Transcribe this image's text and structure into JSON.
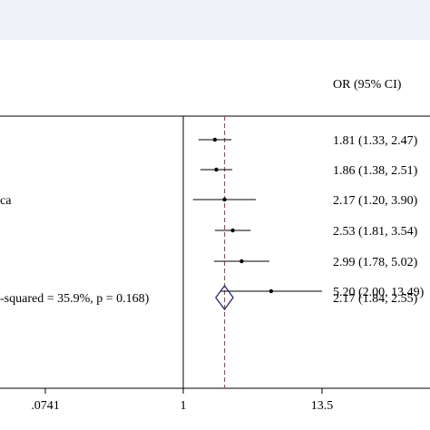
{
  "chart_data": {
    "type": "forest",
    "column_header": "OR (95% CI)",
    "x_scale": "log",
    "null_line": 1,
    "pooled_reference": 2.17,
    "x_ticks": [
      ".0741",
      "1",
      "13.5"
    ],
    "studies": [
      {
        "label": "",
        "or": 1.81,
        "lo": 1.33,
        "hi": 2.47,
        "text": "1.81 (1.33, 2.47)"
      },
      {
        "label": "",
        "or": 1.86,
        "lo": 1.38,
        "hi": 2.51,
        "text": "1.86 (1.38, 2.51)"
      },
      {
        "label": "ca",
        "or": 2.17,
        "lo": 1.2,
        "hi": 3.9,
        "text": "2.17 (1.20, 3.90)"
      },
      {
        "label": "",
        "or": 2.53,
        "lo": 1.81,
        "hi": 3.54,
        "text": "2.53 (1.81, 3.54)"
      },
      {
        "label": "",
        "or": 2.99,
        "lo": 1.78,
        "hi": 5.02,
        "text": "2.99 (1.78, 5.02)"
      },
      {
        "label": "",
        "or": 5.2,
        "lo": 2.0,
        "hi": 13.49,
        "text": "5.20 (2.00, 13.49)"
      }
    ],
    "overall": {
      "label": "-squared = 35.9%, p = 0.168)",
      "or": 2.17,
      "lo": 1.84,
      "hi": 2.55,
      "text": "2.17 (1.84, 2.55)"
    },
    "colors": {
      "diamond": "#2a2a6e",
      "reference_line": "#a05050",
      "ink": "#000000"
    }
  }
}
